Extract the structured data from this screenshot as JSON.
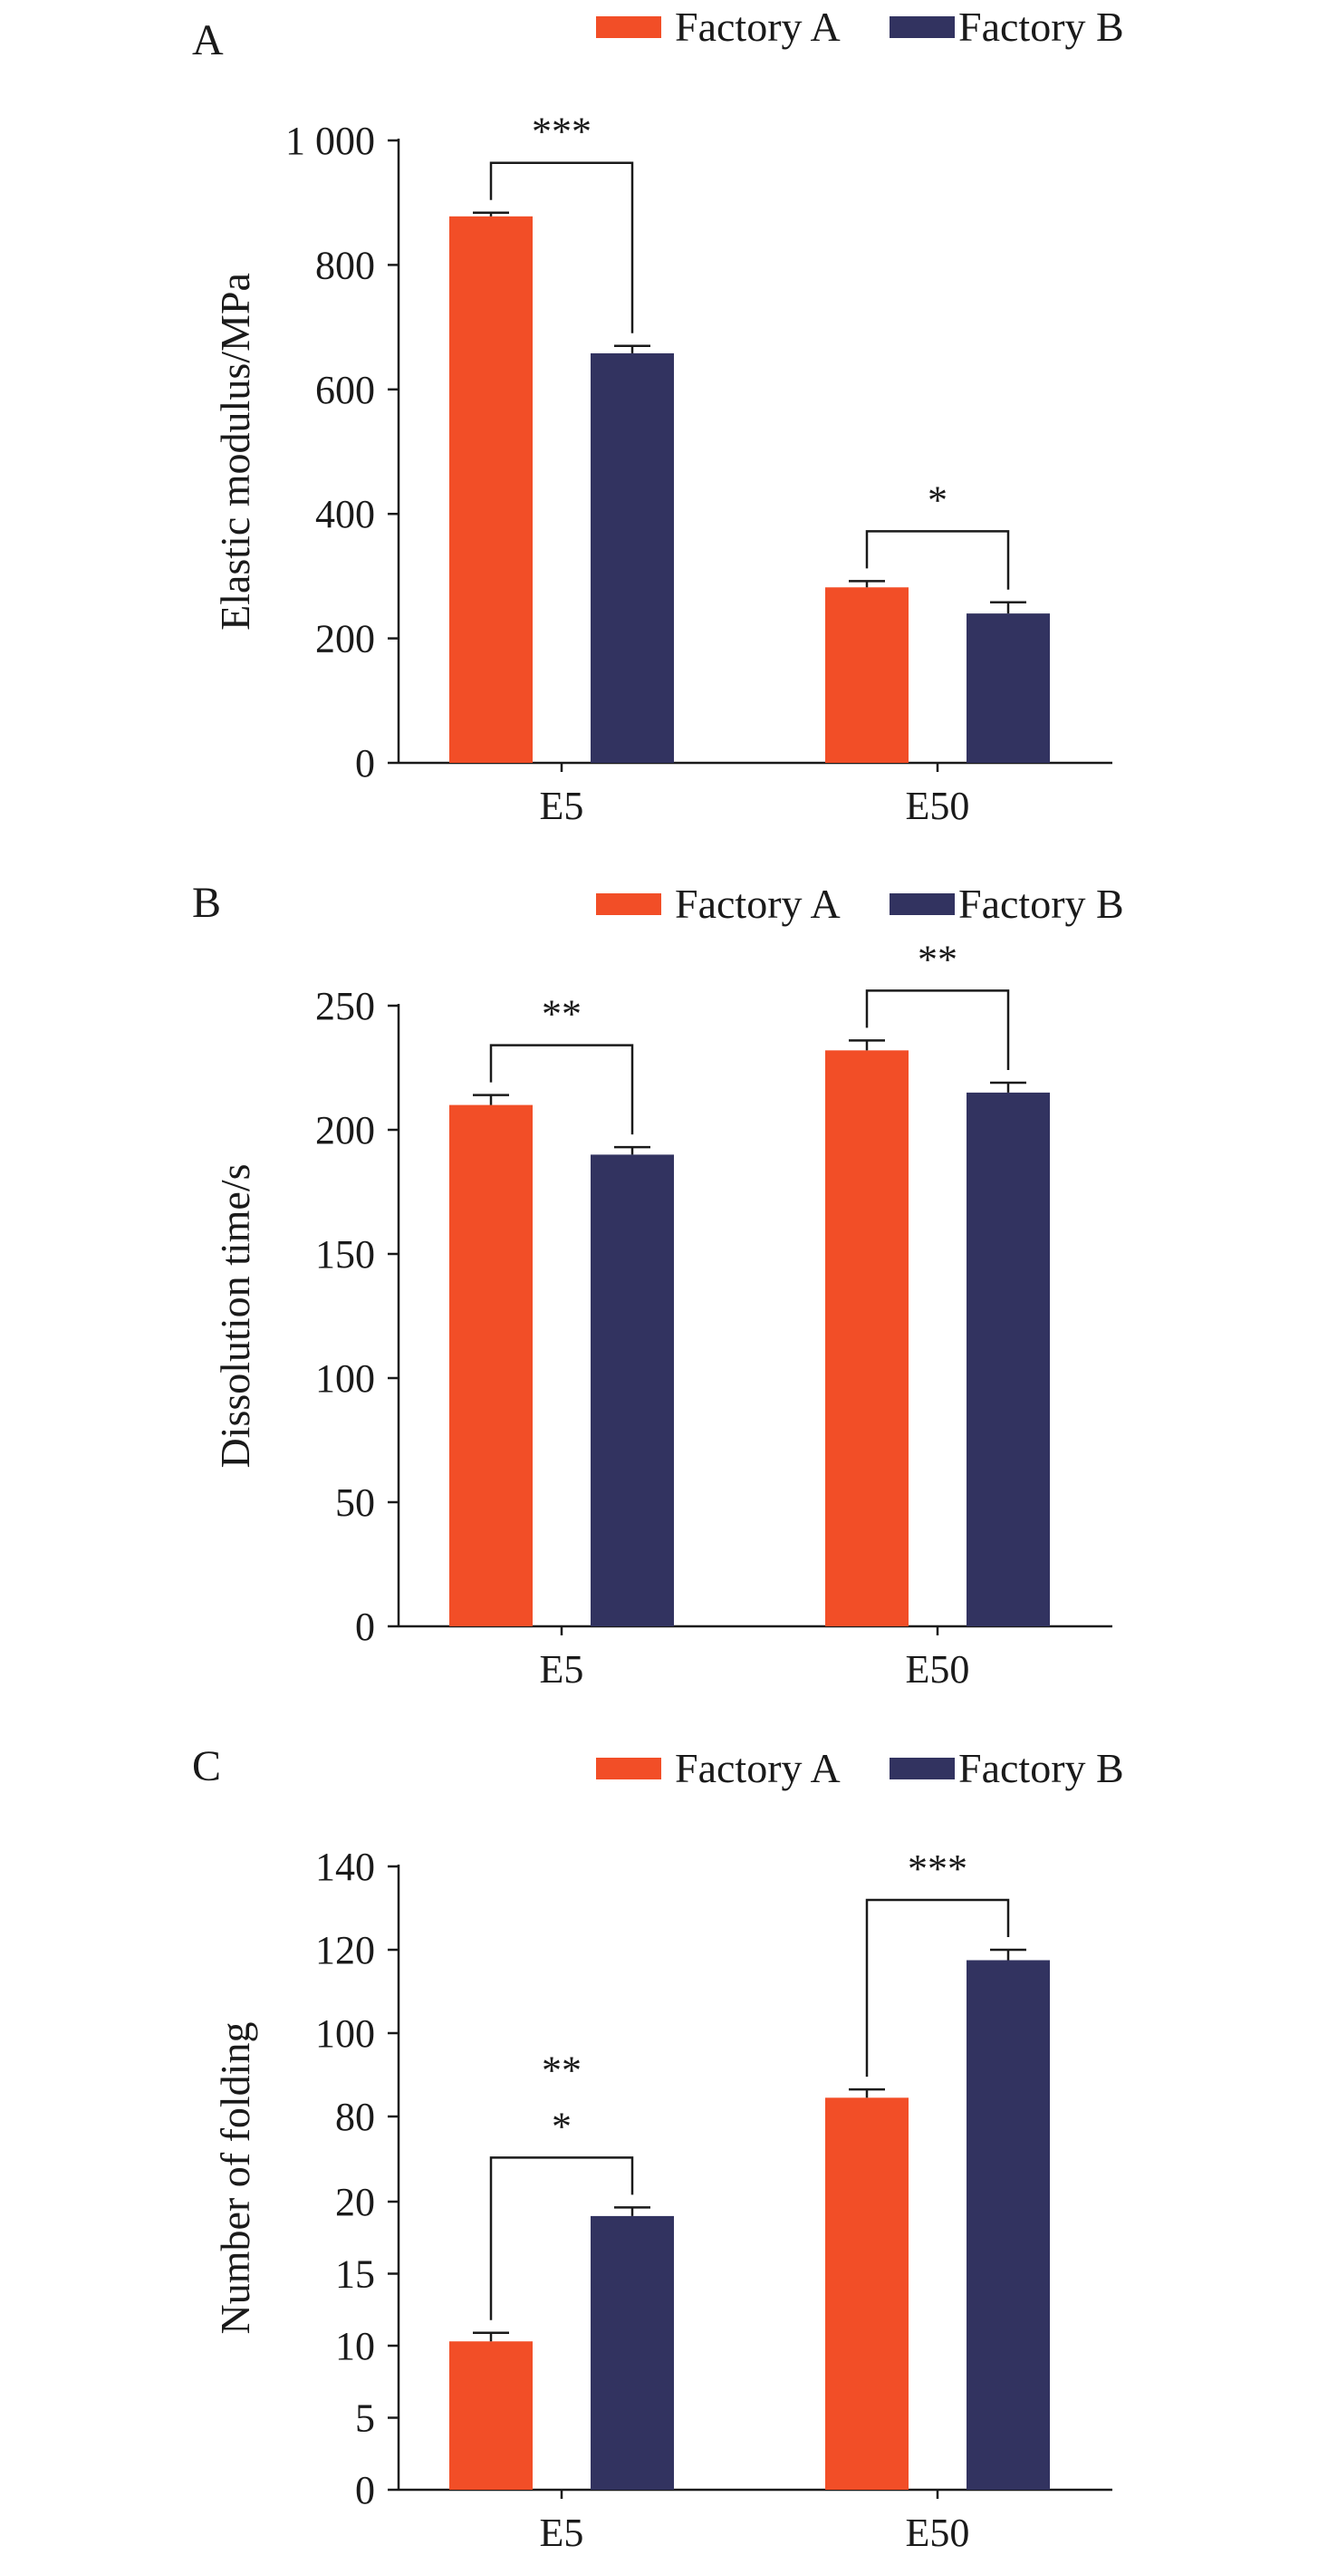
{
  "colors": {
    "factory_a": "#F24E27",
    "factory_b": "#323360",
    "axis": "#1a1a1a"
  },
  "chart_data": [
    {
      "type": "bar",
      "panel": "A",
      "ylabel": "Elastic modulus/MPa",
      "categories": [
        "E5",
        "E50"
      ],
      "ylim": [
        0,
        1000
      ],
      "yticks": [
        0,
        200,
        400,
        600,
        800,
        1000
      ],
      "ytick_labels": [
        "0",
        "200",
        "400",
        "600",
        "800",
        "1 000"
      ],
      "legend": [
        "Factory A",
        "Factory B"
      ],
      "legend_position": "top-right",
      "series": [
        {
          "name": "Factory A",
          "values": [
            878,
            282
          ],
          "errors": [
            6,
            10
          ]
        },
        {
          "name": "Factory B",
          "values": [
            658,
            240
          ],
          "errors": [
            12,
            18
          ]
        }
      ],
      "significance": [
        {
          "category": "E5",
          "label": "***"
        },
        {
          "category": "E50",
          "label": "*"
        }
      ]
    },
    {
      "type": "bar",
      "panel": "B",
      "ylabel": "Dissolution time/s",
      "categories": [
        "E5",
        "E50"
      ],
      "ylim": [
        0,
        250
      ],
      "yticks": [
        0,
        50,
        100,
        150,
        200,
        250
      ],
      "ytick_labels": [
        "0",
        "50",
        "100",
        "150",
        "200",
        "250"
      ],
      "legend": [
        "Factory A",
        "Factory B"
      ],
      "legend_position": "top-right",
      "series": [
        {
          "name": "Factory A",
          "values": [
            210,
            232
          ],
          "errors": [
            4,
            4
          ]
        },
        {
          "name": "Factory B",
          "values": [
            190,
            215
          ],
          "errors": [
            3,
            4
          ]
        }
      ],
      "significance": [
        {
          "category": "E5",
          "label": "**"
        },
        {
          "category": "E50",
          "label": "**"
        }
      ]
    },
    {
      "type": "bar",
      "panel": "C",
      "ylabel": "Number of folding",
      "categories": [
        "E5",
        "E50"
      ],
      "y_axis_break": {
        "lower_range": [
          0,
          20
        ],
        "upper_range": [
          80,
          140
        ]
      },
      "yticks": [
        0,
        5,
        10,
        15,
        20,
        80,
        100,
        120,
        140
      ],
      "ytick_labels": [
        "0",
        "5",
        "10",
        "15",
        "20",
        "80",
        "100",
        "120",
        "140"
      ],
      "legend": [
        "Factory A",
        "Factory B"
      ],
      "legend_position": "top-right",
      "series": [
        {
          "name": "Factory A",
          "values": [
            10.3,
            84.5
          ],
          "errors": [
            0.6,
            2
          ]
        },
        {
          "name": "Factory B",
          "values": [
            19.0,
            117.5
          ],
          "errors": [
            0.6,
            2.5
          ]
        }
      ],
      "significance": [
        {
          "category": "E5",
          "label": "*"
        },
        {
          "category": "E5",
          "label": "**"
        },
        {
          "category": "E50",
          "label": "***"
        }
      ]
    }
  ]
}
